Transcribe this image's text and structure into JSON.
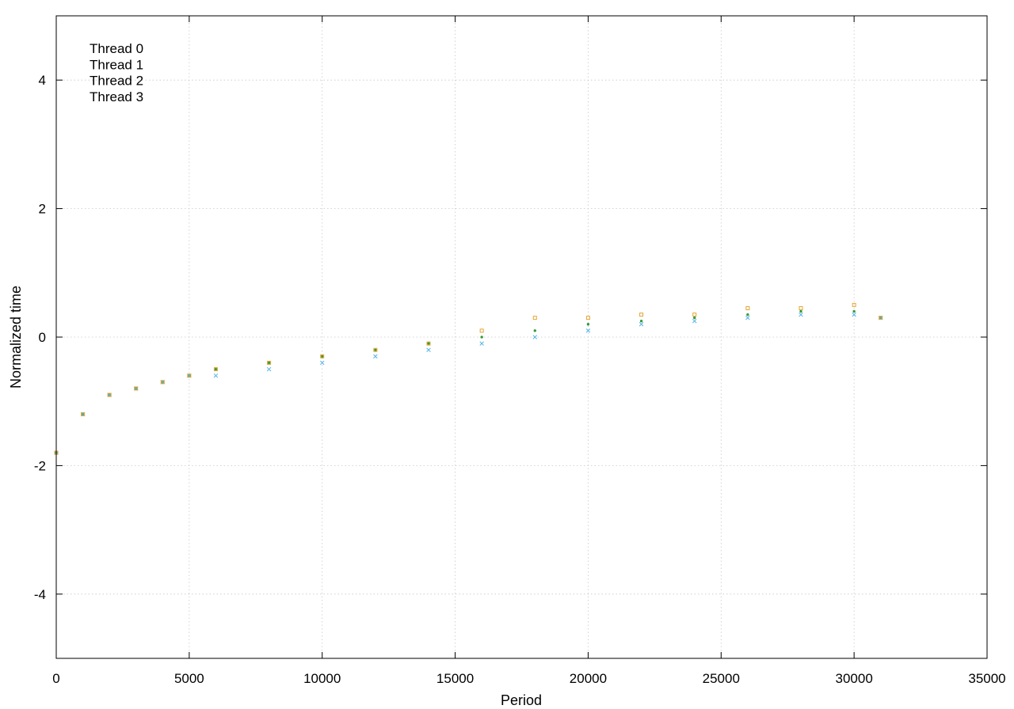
{
  "chart_data": {
    "type": "scatter",
    "title": "",
    "xlabel": "Period",
    "ylabel": "Normalized time",
    "xlim": [
      0,
      35000
    ],
    "ylim": [
      -5,
      5
    ],
    "x_ticks": [
      0,
      5000,
      10000,
      15000,
      20000,
      25000,
      30000,
      35000
    ],
    "y_ticks": [
      -4,
      -2,
      0,
      2,
      4
    ],
    "x_tick_labels": [
      "0",
      "5000",
      "10000",
      "15000",
      "20000",
      "25000",
      "30000",
      "35000"
    ],
    "y_tick_labels": [
      "-4",
      "-2",
      "0",
      "2",
      "4"
    ],
    "grid": true,
    "legend_position": "top-left",
    "series": [
      {
        "name": "Thread 0",
        "color": "#9467c9",
        "marker": "dot",
        "x": [
          0,
          1000,
          2000,
          3000,
          4000,
          5000,
          6000,
          8000,
          10000,
          12000,
          14000,
          16000,
          18000,
          20000,
          22000,
          24000,
          26000,
          28000,
          30000,
          31000
        ],
        "y": [
          -1.8,
          -1.2,
          -0.9,
          -0.8,
          -0.7,
          -0.6,
          -0.5,
          -0.4,
          -0.3,
          -0.2,
          -0.1,
          0.0,
          0.1,
          0.2,
          0.25,
          0.3,
          0.35,
          0.4,
          0.4,
          0.3
        ]
      },
      {
        "name": "Thread 1",
        "color": "#2ca02c",
        "marker": "dot",
        "x": [
          0,
          1000,
          2000,
          3000,
          4000,
          5000,
          6000,
          8000,
          10000,
          12000,
          14000,
          16000,
          18000,
          20000,
          22000,
          24000,
          26000,
          28000,
          30000,
          31000
        ],
        "y": [
          -1.8,
          -1.2,
          -0.9,
          -0.8,
          -0.7,
          -0.6,
          -0.5,
          -0.4,
          -0.3,
          -0.2,
          -0.1,
          0.0,
          0.1,
          0.2,
          0.25,
          0.3,
          0.35,
          0.4,
          0.4,
          0.3
        ]
      },
      {
        "name": "Thread 2",
        "color": "#56b4e9",
        "marker": "x",
        "x": [
          0,
          1000,
          2000,
          3000,
          4000,
          5000,
          6000,
          8000,
          10000,
          12000,
          14000,
          16000,
          18000,
          20000,
          22000,
          24000,
          26000,
          28000,
          30000,
          31000
        ],
        "y": [
          -1.8,
          -1.2,
          -0.9,
          -0.8,
          -0.7,
          -0.6,
          -0.6,
          -0.5,
          -0.4,
          -0.3,
          -0.2,
          -0.1,
          0.0,
          0.1,
          0.2,
          0.25,
          0.3,
          0.35,
          0.35,
          0.3
        ]
      },
      {
        "name": "Thread 3",
        "color": "#e6a532",
        "marker": "square",
        "x": [
          0,
          1000,
          2000,
          3000,
          4000,
          5000,
          6000,
          8000,
          10000,
          12000,
          14000,
          16000,
          18000,
          20000,
          22000,
          24000,
          26000,
          28000,
          30000,
          31000
        ],
        "y": [
          -1.8,
          -1.2,
          -0.9,
          -0.8,
          -0.7,
          -0.6,
          -0.5,
          -0.4,
          -0.3,
          -0.2,
          -0.1,
          0.1,
          0.3,
          0.3,
          0.35,
          0.35,
          0.45,
          0.45,
          0.5,
          0.3
        ]
      }
    ]
  }
}
